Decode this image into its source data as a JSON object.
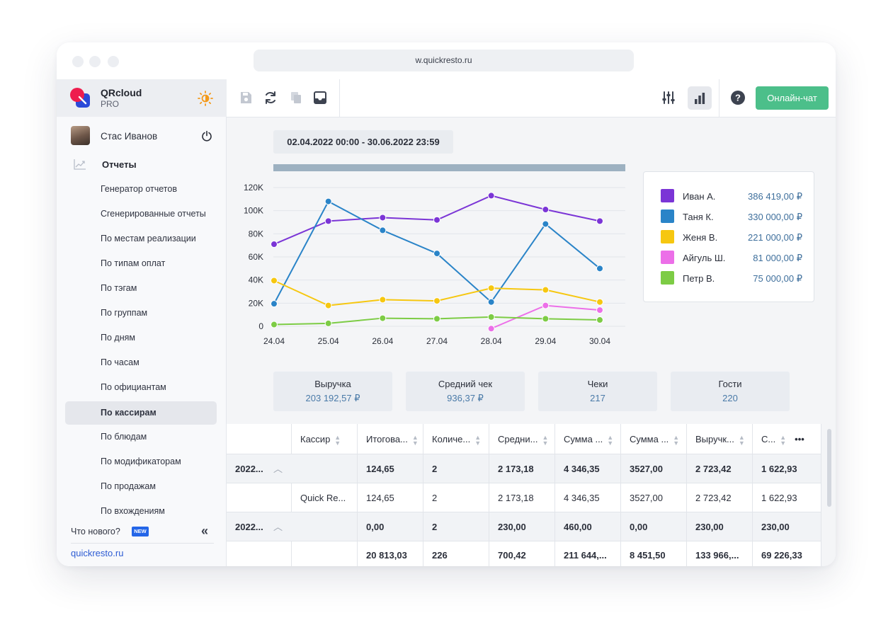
{
  "browser": {
    "url": "w.quickresto.ru"
  },
  "brand": {
    "name": "QRcloud",
    "plan": "PRO"
  },
  "user": {
    "name": "Стас Иванов"
  },
  "sidebar": {
    "section_label": "Отчеты",
    "items": [
      {
        "label": "Генератор отчетов",
        "active": false
      },
      {
        "label": "Сгенерированные отчеты",
        "active": false
      },
      {
        "label": "По местам реализации",
        "active": false
      },
      {
        "label": "По типам оплат",
        "active": false
      },
      {
        "label": "По тэгам",
        "active": false
      },
      {
        "label": "По группам",
        "active": false
      },
      {
        "label": "По дням",
        "active": false
      },
      {
        "label": "По часам",
        "active": false
      },
      {
        "label": "По официантам",
        "active": false
      },
      {
        "label": "По кассирам",
        "active": true
      },
      {
        "label": "По блюдам",
        "active": false
      },
      {
        "label": "По модификаторам",
        "active": false
      },
      {
        "label": "По продажам",
        "active": false
      },
      {
        "label": "По вхождениям",
        "active": false
      }
    ],
    "whats_new": "Что нового?",
    "new_badge": "NEW",
    "site_link": "quickresto.ru"
  },
  "toolbar": {
    "icons": [
      "save-icon",
      "refresh-icon",
      "copy-icon",
      "inbox-icon",
      "filters-icon",
      "bar-chart-icon",
      "help-icon"
    ],
    "chat_button": "Онлайн-чат",
    "accent_color": "#4cbf8a"
  },
  "period": "02.04.2022 00:00 - 30.06.2022 23:59",
  "chart_data": {
    "type": "line",
    "x": [
      "24.04",
      "25.04",
      "26.04",
      "27.04",
      "28.04",
      "29.04",
      "30.04"
    ],
    "ylim": [
      0,
      120000
    ],
    "yticks": [
      {
        "value": 0,
        "label": "0"
      },
      {
        "value": 20000,
        "label": "20K"
      },
      {
        "value": 40000,
        "label": "40K"
      },
      {
        "value": 60000,
        "label": "60K"
      },
      {
        "value": 80000,
        "label": "80K"
      },
      {
        "value": 100000,
        "label": "100K"
      },
      {
        "value": 120000,
        "label": "120K"
      }
    ],
    "grid": true,
    "legend_placement": "right",
    "series": [
      {
        "name": "Иван А.",
        "total": "386 419,00 ₽",
        "color": "#7b35d6",
        "values": [
          71000,
          91000,
          94000,
          92000,
          113000,
          101000,
          91000
        ]
      },
      {
        "name": "Таня К.",
        "total": "330 000,00 ₽",
        "color": "#2a84c8",
        "values": [
          19500,
          108000,
          83000,
          63000,
          21000,
          88500,
          50000
        ]
      },
      {
        "name": "Женя В.",
        "total": "221 000,00 ₽",
        "color": "#f6c710",
        "values": [
          39500,
          18000,
          23000,
          22000,
          33000,
          31500,
          21000
        ]
      },
      {
        "name": "Айгуль Ш.",
        "total": "81 000,00 ₽",
        "color": "#ec6fe8",
        "values": [
          null,
          null,
          null,
          null,
          -2000,
          18000,
          14000
        ]
      },
      {
        "name": "Петр В.",
        "total": "75 000,00 ₽",
        "color": "#7dcc45",
        "values": [
          1500,
          2500,
          7000,
          6500,
          8000,
          6500,
          5500
        ]
      }
    ]
  },
  "kpis": [
    {
      "label": "Выручка",
      "value": "203 192,57 ₽"
    },
    {
      "label": "Средний чек",
      "value": "936,37 ₽"
    },
    {
      "label": "Чеки",
      "value": "217"
    },
    {
      "label": "Гости",
      "value": "220"
    }
  ],
  "table": {
    "headers": [
      "",
      "Кассир",
      "Итогова...",
      "Количе...",
      "Средни...",
      "Сумма ...",
      "Сумма ...",
      "Выручк...",
      "С..."
    ],
    "rows": [
      {
        "kind": "group",
        "cells": [
          "2022...",
          "",
          "124,65",
          "2",
          "2 173,18",
          "4 346,35",
          "3527,00",
          "2 723,42",
          "1 622,93"
        ]
      },
      {
        "kind": "item",
        "cells": [
          "",
          "Quick Re...",
          "124,65",
          "2",
          "2 173,18",
          "4 346,35",
          "3527,00",
          "2 723,42",
          "1 622,93"
        ]
      },
      {
        "kind": "group",
        "cells": [
          "2022...",
          "",
          "0,00",
          "2",
          "230,00",
          "460,00",
          "0,00",
          "230,00",
          "230,00"
        ]
      },
      {
        "kind": "total",
        "cells": [
          "",
          "",
          "20 813,03",
          "226",
          "700,42",
          "211 644,...",
          "8 451,50",
          "133 966,...",
          "69 226,33"
        ]
      }
    ]
  }
}
